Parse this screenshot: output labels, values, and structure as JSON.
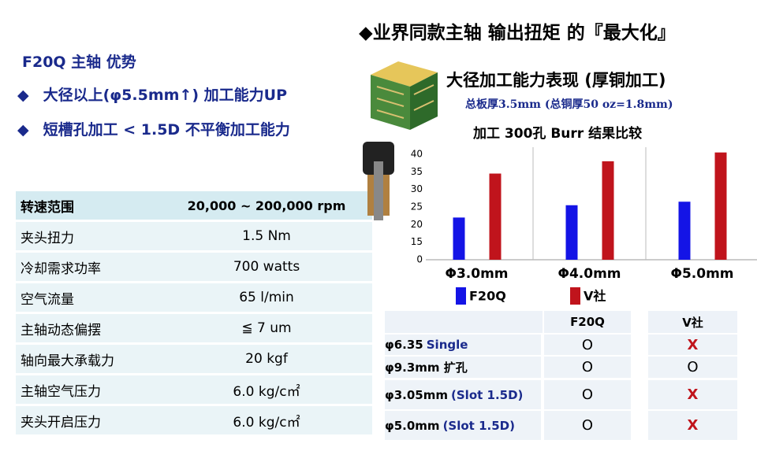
{
  "header": {
    "title": "◆业界同款主轴 输出扭矩 的『最大化』",
    "product": "F20Q 主轴  优势",
    "points": [
      "大径以上(φ5.5mm↑)  加工能力UP",
      "短槽孔加工  < 1.5D  不平衡加工能力"
    ]
  },
  "spec_table": {
    "rows": [
      [
        "转速范围",
        "20,000 ~ 200,000 rpm"
      ],
      [
        "夹头扭力",
        "1.5 Nm"
      ],
      [
        "冷却需求功率",
        "700 watts"
      ],
      [
        "空气流量",
        "65  l/min"
      ],
      [
        "主轴动态偏摆",
        "≦ 7 um"
      ],
      [
        "轴向最大承载力",
        "20 kgf"
      ],
      [
        "主轴空气压力",
        "6.0 kg/c㎡"
      ],
      [
        "夹头开启压力",
        "6.0 kg/c㎡"
      ]
    ]
  },
  "chart_section": {
    "heading": "大径加工能力表现 (厚铜加工)",
    "subheading": "总板厚3.5mm (总铜厚50 oz=1.8mm)"
  },
  "chart_data": {
    "type": "bar",
    "title": "加工 300孔 Burr  结果比较",
    "categories": [
      "Φ3.0mm",
      "Φ4.0mm",
      "Φ5.0mm"
    ],
    "series": [
      {
        "name": "F20Q",
        "color": "#1414e6",
        "values": [
          22,
          25.5,
          26.5
        ]
      },
      {
        "name": "V社",
        "color": "#c0141c",
        "values": [
          34.5,
          38,
          40.5
        ]
      }
    ],
    "ylim": [
      10,
      42
    ],
    "yticks": [
      {
        "value": 10,
        "label": "0"
      },
      15,
      20,
      25,
      30,
      35,
      40
    ]
  },
  "compare_table": {
    "columns": [
      "F20Q",
      "V社"
    ],
    "rows": [
      {
        "label": "φ6.35",
        "note": "Single",
        "cells": [
          "O",
          "X"
        ]
      },
      {
        "label": "φ9.3mm 扩孔",
        "cells": [
          "O",
          "O"
        ]
      },
      {
        "label": "φ3.05mm",
        "note": "(Slot 1.5D)",
        "cells": [
          "O",
          "X"
        ]
      },
      {
        "label": "φ5.0mm",
        "note": "(Slot 1.5D)",
        "cells": [
          "O",
          "X"
        ]
      }
    ]
  }
}
